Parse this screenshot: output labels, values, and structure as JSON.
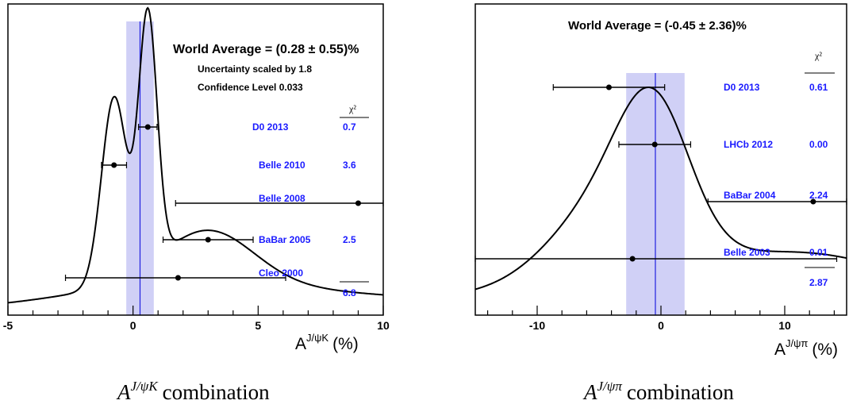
{
  "chart_data": [
    {
      "type": "ideogram",
      "title": "World Average = (0.28 ± 0.55)%",
      "notes": [
        "Uncertainty scaled by 1.8",
        "Confidence Level 0.033"
      ],
      "chi2_header": "χ²",
      "average": 0.28,
      "band_error": 0.55,
      "xlim": [
        -5,
        10
      ],
      "xticks": [
        -5,
        0,
        5,
        10
      ],
      "xlabel_base": "A",
      "xlabel_sup": "J/ψK",
      "xlabel_unit": "(%)",
      "measurements": [
        {
          "name": "D0 2013",
          "value": 0.59,
          "err_lo": 0.37,
          "err_hi": 0.37,
          "chi2": "0.7"
        },
        {
          "name": "Belle 2010",
          "value": -0.76,
          "err_lo": 0.5,
          "err_hi": 0.5,
          "chi2": "3.6"
        },
        {
          "name": "Belle 2008",
          "value": 9.0,
          "err_lo": 7.3,
          "err_hi": 7.3,
          "chi2": ""
        },
        {
          "name": "BaBar 2005",
          "value": 3.0,
          "err_lo": 1.8,
          "err_hi": 1.8,
          "chi2": "2.5"
        },
        {
          "name": "Cleo 2000",
          "value": 1.8,
          "err_lo": 4.5,
          "err_hi": 4.3,
          "chi2": ""
        }
      ],
      "chi2_total": "6.8",
      "caption_base": "A",
      "caption_sup": "J/ψK",
      "caption_text": "combination"
    },
    {
      "type": "ideogram",
      "title": "World Average = (-0.45 ± 2.36)%",
      "notes": [],
      "chi2_header": "χ²",
      "average": -0.45,
      "band_error": 2.36,
      "xlim": [
        -15,
        15
      ],
      "xticks": [
        -10,
        0,
        10
      ],
      "xlabel_base": "A",
      "xlabel_sup": "J/ψπ",
      "xlabel_unit": "(%)",
      "measurements": [
        {
          "name": "D0 2013",
          "value": -4.2,
          "err_lo": 4.5,
          "err_hi": 4.5,
          "chi2": "0.61"
        },
        {
          "name": "LHCb 2012",
          "value": -0.5,
          "err_lo": 2.9,
          "err_hi": 2.9,
          "chi2": "0.00"
        },
        {
          "name": "BaBar 2004",
          "value": 12.3,
          "err_lo": 8.5,
          "err_hi": 8.5,
          "chi2": "2.24"
        },
        {
          "name": "Belle 2003",
          "value": -2.3,
          "err_lo": 12.7,
          "err_hi": 16.5,
          "chi2": "0.01"
        }
      ],
      "chi2_total": "2.87",
      "caption_base": "A",
      "caption_sup": "J/ψπ",
      "caption_text": "combination"
    }
  ]
}
